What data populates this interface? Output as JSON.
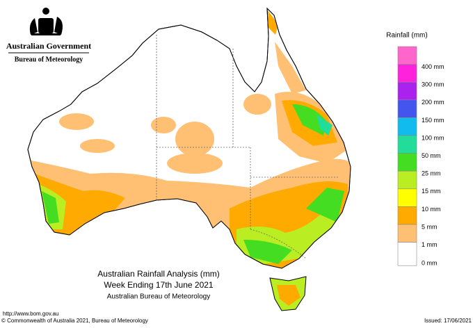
{
  "header": {
    "agency": "Australian Government",
    "bureau": "Bureau of Meteorology"
  },
  "legend": {
    "title": "Rainfall (mm)",
    "items": [
      {
        "color": "#ff66cc",
        "label": null
      },
      {
        "color": "#ff22dd",
        "label": "400 mm"
      },
      {
        "color": "#aa22ee",
        "label": "300 mm"
      },
      {
        "color": "#4455ee",
        "label": "200 mm"
      },
      {
        "color": "#11bbee",
        "label": "150 mm"
      },
      {
        "color": "#22dd99",
        "label": "100 mm"
      },
      {
        "color": "#44dd22",
        "label": "50 mm"
      },
      {
        "color": "#bbee22",
        "label": "25 mm"
      },
      {
        "color": "#ffff00",
        "label": "15 mm"
      },
      {
        "color": "#ffaa00",
        "label": "10 mm"
      },
      {
        "color": "#ffc073",
        "label": "5 mm"
      },
      {
        "color": "#ffffff",
        "label": "1 mm"
      }
    ],
    "bottom_label": "0 mm"
  },
  "caption": {
    "title": "Australian Rainfall Analysis (mm)",
    "period": "Week Ending 17th June 2021",
    "source": "Australian Bureau of Meteorology"
  },
  "footer": {
    "url": "http://www.bom.gov.au",
    "copyright": "© Commonwealth of Australia 2021, Bureau of Meteorology",
    "issued": "Issued: 17/06/2021"
  }
}
